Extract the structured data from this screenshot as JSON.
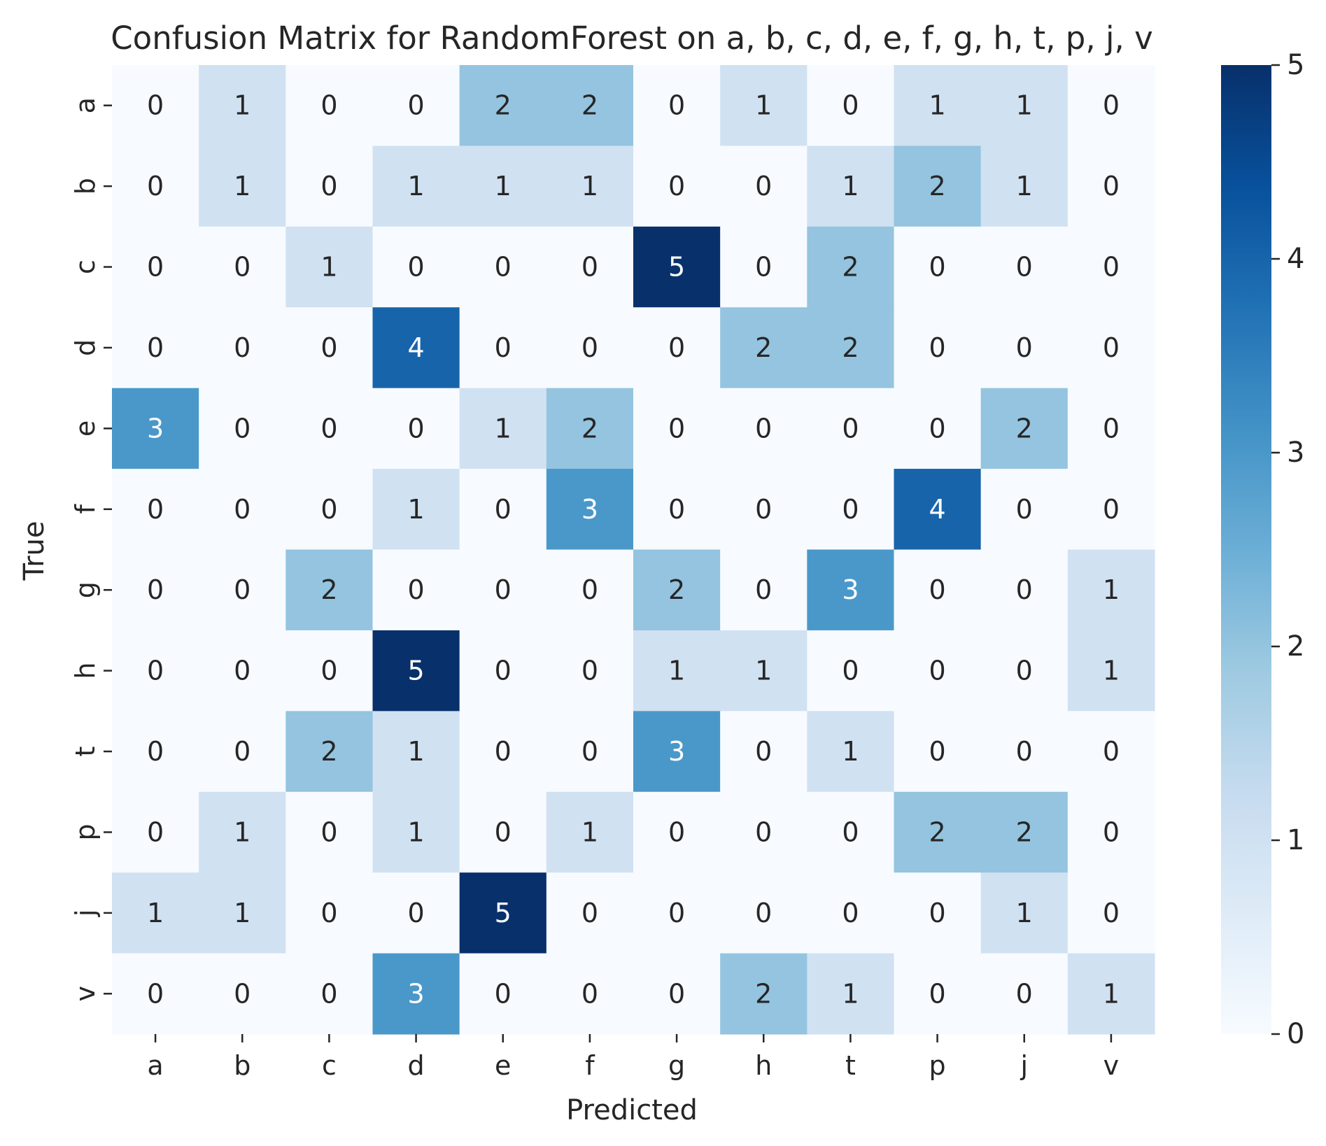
{
  "chart_data": {
    "type": "heatmap",
    "title": "Confusion Matrix for RandomForest on a, b, c, d, e, f, g, h, t, p, j, v",
    "xlabel": "Predicted",
    "ylabel": "True",
    "x_categories": [
      "a",
      "b",
      "c",
      "d",
      "e",
      "f",
      "g",
      "h",
      "t",
      "p",
      "j",
      "v"
    ],
    "y_categories": [
      "a",
      "b",
      "c",
      "d",
      "e",
      "f",
      "g",
      "h",
      "t",
      "p",
      "j",
      "v"
    ],
    "values": [
      [
        0,
        1,
        0,
        0,
        2,
        2,
        0,
        1,
        0,
        1,
        1,
        0
      ],
      [
        0,
        1,
        0,
        1,
        1,
        1,
        0,
        0,
        1,
        2,
        1,
        0
      ],
      [
        0,
        0,
        1,
        0,
        0,
        0,
        5,
        0,
        2,
        0,
        0,
        0
      ],
      [
        0,
        0,
        0,
        4,
        0,
        0,
        0,
        2,
        2,
        0,
        0,
        0
      ],
      [
        3,
        0,
        0,
        0,
        1,
        2,
        0,
        0,
        0,
        0,
        2,
        0
      ],
      [
        0,
        0,
        0,
        1,
        0,
        3,
        0,
        0,
        0,
        4,
        0,
        0
      ],
      [
        0,
        0,
        2,
        0,
        0,
        0,
        2,
        0,
        3,
        0,
        0,
        1
      ],
      [
        0,
        0,
        0,
        5,
        0,
        0,
        1,
        1,
        0,
        0,
        0,
        1
      ],
      [
        0,
        0,
        2,
        1,
        0,
        0,
        3,
        0,
        1,
        0,
        0,
        0
      ],
      [
        0,
        1,
        0,
        1,
        0,
        1,
        0,
        0,
        0,
        2,
        2,
        0
      ],
      [
        1,
        1,
        0,
        0,
        5,
        0,
        0,
        0,
        0,
        0,
        1,
        0
      ],
      [
        0,
        0,
        0,
        3,
        0,
        0,
        0,
        2,
        1,
        0,
        0,
        1
      ]
    ],
    "colormap": "Blues",
    "color_range": [
      0,
      5
    ],
    "colorbar_ticks": [
      0,
      1,
      2,
      3,
      4,
      5
    ],
    "colormap_stops": [
      "#f7fbff",
      "#deebf7",
      "#c6dbef",
      "#9ecae1",
      "#6baed6",
      "#4292c6",
      "#2171b5",
      "#08519c",
      "#08306b"
    ],
    "text_color_dark": "#262626",
    "text_color_light": "#ffffff",
    "grid": false,
    "legend": "colorbar-right"
  }
}
